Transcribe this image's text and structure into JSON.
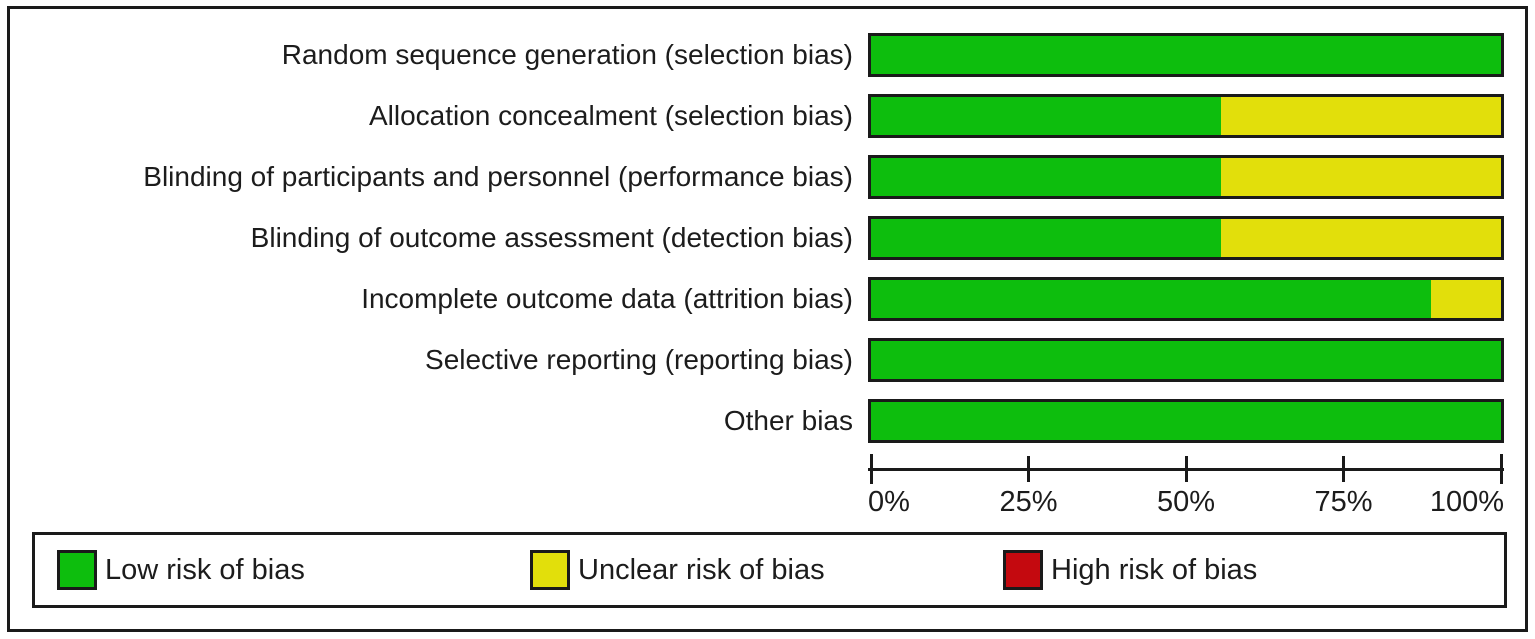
{
  "figure": {
    "background": "#ffffff",
    "frame_border_color": "#1a1a1a"
  },
  "chart_data": {
    "type": "bar",
    "orientation": "horizontal",
    "stacked": true,
    "title": "",
    "xlabel": "",
    "ylabel": "",
    "unit": "percent",
    "categories": [
      "Random sequence generation (selection bias)",
      "Allocation concealment (selection bias)",
      "Blinding of participants and personnel (performance bias)",
      "Blinding of outcome assessment (detection bias)",
      "Incomplete outcome data (attrition bias)",
      "Selective reporting (reporting bias)",
      "Other bias"
    ],
    "series": [
      {
        "name": "Low risk of bias",
        "color": "#0dbe0d",
        "values": [
          100,
          55.6,
          55.6,
          55.6,
          88.9,
          100,
          100
        ]
      },
      {
        "name": "Unclear risk of bias",
        "color": "#e2df0b",
        "values": [
          0,
          44.4,
          44.4,
          44.4,
          11.1,
          0,
          0
        ]
      },
      {
        "name": "High risk of bias",
        "color": "#c4090f",
        "values": [
          0,
          0,
          0,
          0,
          0,
          0,
          0
        ]
      }
    ],
    "xlim": [
      0,
      100
    ],
    "x_ticks": [
      "0%",
      "25%",
      "50%",
      "75%",
      "100%"
    ],
    "grid": false,
    "legend_position": "bottom"
  }
}
